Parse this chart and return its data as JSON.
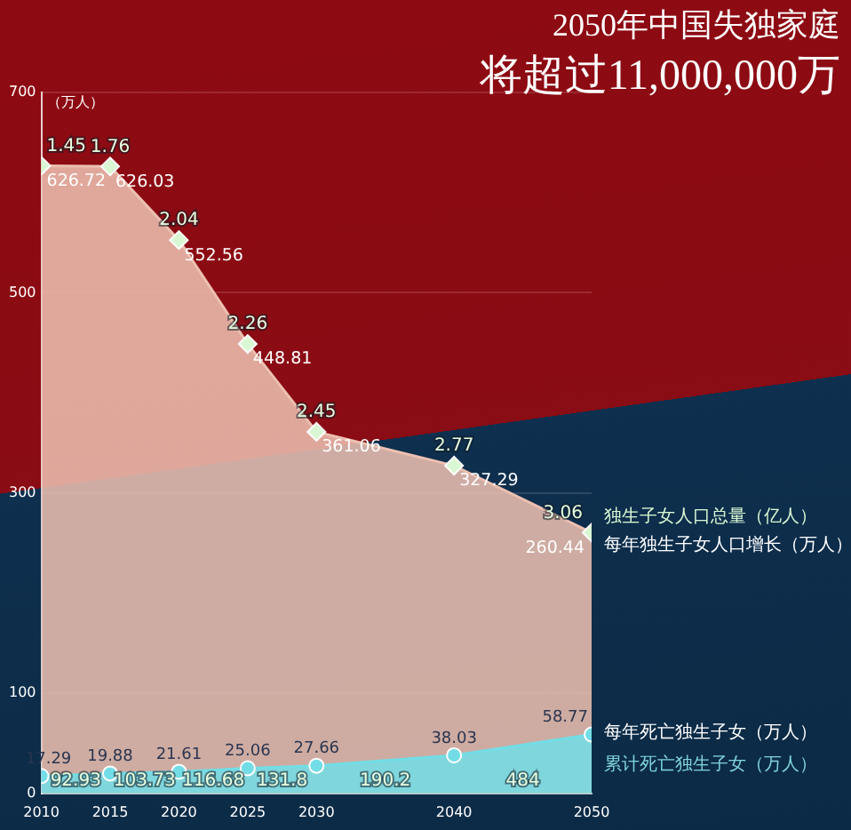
{
  "chart_data": {
    "type": "area",
    "title": "2050年中国失独家庭",
    "subtitle": "将超过11,000,000万",
    "ylabel": "（万人）",
    "x": [
      2010,
      2015,
      2020,
      2025,
      2030,
      2040,
      2050
    ],
    "xlim": [
      2010,
      2050
    ],
    "xticks": [
      2010,
      2015,
      2020,
      2025,
      2030,
      2040,
      2050
    ],
    "ylim": [
      0,
      700
    ],
    "yticks": [
      0,
      100,
      300,
      500,
      700
    ],
    "grid": "y",
    "legend": false,
    "data_labels": true,
    "series": [
      {
        "name": "每年独生子女人口增长（万人）",
        "color": "#ecc0b1",
        "marker": "diamond",
        "values": [
          626.72,
          626.03,
          552.56,
          448.81,
          361.06,
          327.29,
          260.44
        ]
      },
      {
        "name": "每年死亡独生子女（万人）",
        "color": "#72dde6",
        "marker": "circle",
        "values": [
          17.29,
          19.88,
          21.61,
          25.06,
          27.66,
          38.03,
          58.77
        ]
      }
    ],
    "annotations": [
      "独生子女人口总量（亿人）",
      "累计死亡独生子女（万人）",
      {
        "text": "1.45",
        "x": 2010,
        "y": 626.72
      },
      {
        "text": "1.76",
        "x": 2015,
        "y": 626.03
      },
      {
        "text": "2.04",
        "x": 2020,
        "y": 552.56
      },
      {
        "text": "2.26",
        "x": 2025,
        "y": 448.81
      },
      {
        "text": "2.45",
        "x": 2030,
        "y": 361.06
      },
      {
        "text": "2.77",
        "x": 2040,
        "y": 327.29
      },
      {
        "text": "3.06",
        "x": 2050,
        "y": 260.44
      },
      {
        "text": "92.93",
        "x": 2012.5,
        "y": 0
      },
      {
        "text": "103.73",
        "x": 2017.5,
        "y": 0
      },
      {
        "text": "116.68",
        "x": 2022.5,
        "y": 0
      },
      {
        "text": "131.8",
        "x": 2027.5,
        "y": 0
      },
      {
        "text": "190.2",
        "x": 2035,
        "y": 0
      },
      {
        "text": "484",
        "x": 2045,
        "y": 0
      }
    ]
  }
}
